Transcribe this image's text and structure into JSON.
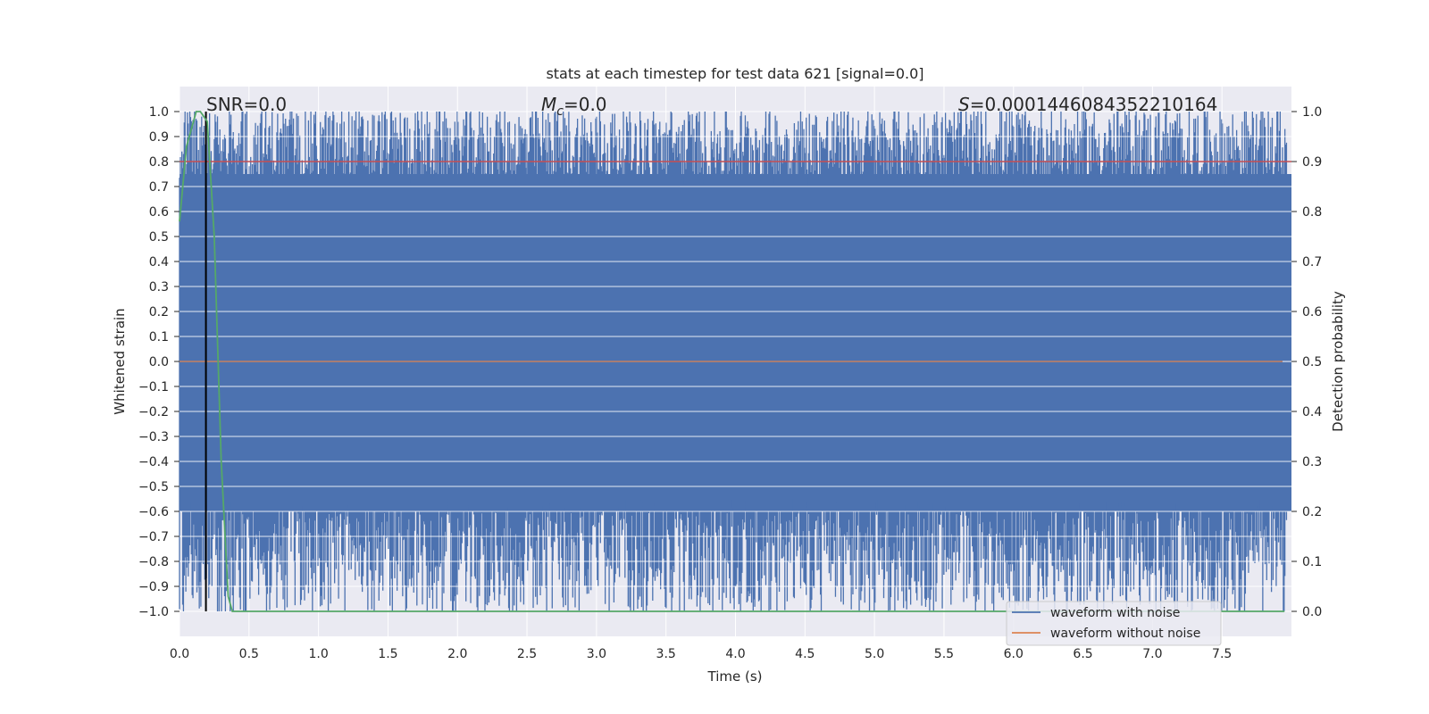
{
  "chart_data": {
    "type": "line",
    "title": "stats at each timestep for test data 621 [signal=0.0]",
    "xlabel": "Time (s)",
    "ylabel_left": "Whitened strain",
    "ylabel_right": "Detection probability",
    "xlim": [
      0.0,
      8.0
    ],
    "ylim_left": [
      -1.1,
      1.1
    ],
    "ylim_right": [
      -0.05,
      1.05
    ],
    "xticks": [
      "0.0",
      "0.5",
      "1.0",
      "1.5",
      "2.0",
      "2.5",
      "3.0",
      "3.5",
      "4.0",
      "4.5",
      "5.0",
      "5.5",
      "6.0",
      "6.5",
      "7.0",
      "7.5"
    ],
    "yticks_left": [
      "1.0",
      "0.9",
      "0.8",
      "0.7",
      "0.6",
      "0.5",
      "0.4",
      "0.3",
      "0.2",
      "0.1",
      "0.0",
      "−0.1",
      "−0.2",
      "−0.3",
      "−0.4",
      "−0.5",
      "−0.6",
      "−0.7",
      "−0.8",
      "−0.9",
      "−1.0"
    ],
    "yticks_right": [
      "1.0",
      "0.9",
      "0.8",
      "0.7",
      "0.6",
      "0.5",
      "0.4",
      "0.3",
      "0.2",
      "0.1",
      "0.0"
    ],
    "annotations": {
      "snr": "SNR=0.0",
      "mc_symbol": "M",
      "mc_subscript": "c",
      "mc_value": "=0.0",
      "s_symbol": "S",
      "s_value": "=0.0001446084352210164"
    },
    "series": [
      {
        "name": "waveform with noise",
        "color": "#4c72b0",
        "description": "dense whitened noise spanning -1.0 to 1.0"
      },
      {
        "name": "waveform without noise",
        "color": "#dd8452",
        "values_constant": 0.0
      },
      {
        "name": "detection probability",
        "color": "#55a868",
        "axis": "right",
        "x": [
          0.0,
          0.05,
          0.1,
          0.12,
          0.15,
          0.2,
          0.25,
          0.3,
          0.35,
          0.38,
          0.4,
          0.5,
          7.95
        ],
        "y": [
          0.78,
          0.93,
          0.98,
          1.0,
          1.0,
          0.98,
          0.75,
          0.3,
          0.03,
          0.0,
          0.0,
          0.0,
          0.0
        ]
      }
    ],
    "threshold": {
      "value": 0.9,
      "axis": "right",
      "color": "#c44e52"
    },
    "vertical_marker": {
      "x": 0.19,
      "color": "#000000"
    },
    "legend": {
      "location": "lower-right",
      "entries": [
        {
          "label": "waveform with noise",
          "color": "#4c72b0"
        },
        {
          "label": "waveform without noise",
          "color": "#dd8452"
        }
      ]
    },
    "colors": {
      "plot_bg": "#eaeaf2",
      "grid": "#ffffff"
    }
  }
}
